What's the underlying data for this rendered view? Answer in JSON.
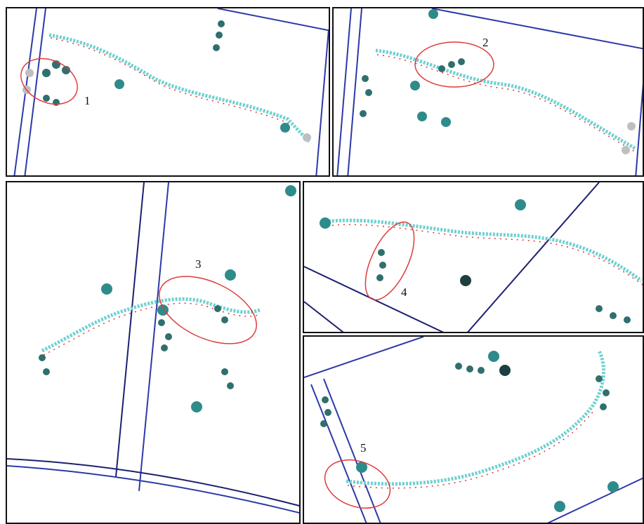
{
  "figure": {
    "panels": [
      {
        "id": "p1",
        "label": "1"
      },
      {
        "id": "p2",
        "label": "2"
      },
      {
        "id": "p3",
        "label": "3"
      },
      {
        "id": "p4",
        "label": "4"
      },
      {
        "id": "p5",
        "label": "5"
      }
    ]
  },
  "colors": {
    "frame": "#111111",
    "box_edge": "#2b3aa8",
    "box_edge_dark": "#1c2070",
    "ion": "#2e8b8b",
    "chain_cyan": "#6ed1d1",
    "oxygen": "#e0352b",
    "highlight": "#e03a3a",
    "hydrogen": "#bfbfbf"
  }
}
